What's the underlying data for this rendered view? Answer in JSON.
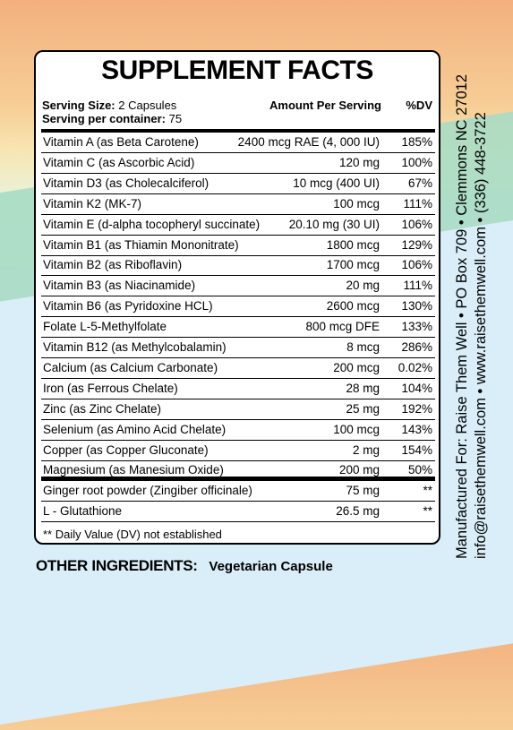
{
  "label": {
    "title": "SUPPLEMENT FACTS",
    "serving_size_label": "Serving Size:",
    "serving_size_value": "2 Capsules",
    "servings_label": "Serving per container:",
    "servings_value": "75",
    "amount_header": "Amount Per Serving",
    "dv_header": "%DV",
    "rows": [
      {
        "name": "Vitamin A (as Beta Carotene)",
        "amount": "2400 mcg RAE (4, 000 IU)",
        "dv": "185%"
      },
      {
        "name": "Vitamin C (as Ascorbic Acid)",
        "amount": "120 mg",
        "dv": "100%"
      },
      {
        "name": "Vitamin D3 (as Cholecalciferol)",
        "amount": "10 mcg (400 UI)",
        "dv": "67%"
      },
      {
        "name": "Vitamin K2 (MK-7)",
        "amount": "100 mcg",
        "dv": "111%"
      },
      {
        "name": "Vitamin E (d-alpha tocopheryl succinate)",
        "amount": "20.10 mg (30 UI)",
        "dv": "106%"
      },
      {
        "name": "Vitamin B1 (as Thiamin Mononitrate)",
        "amount": "1800 mcg",
        "dv": "129%"
      },
      {
        "name": "Vitamin B2 (as Riboflavin)",
        "amount": "1700 mcg",
        "dv": "106%"
      },
      {
        "name": "Vitamin B3 (as Niacinamide)",
        "amount": "20 mg",
        "dv": "111%"
      },
      {
        "name": "Vitamin B6 (as Pyridoxine HCL)",
        "amount": "2600 mcg",
        "dv": "130%"
      },
      {
        "name": "Folate L-5-Methylfolate",
        "amount": "800 mcg DFE",
        "dv": "133%"
      },
      {
        "name": "Vitamin B12 (as Methylcobalamin)",
        "amount": "8 mcg",
        "dv": "286%"
      },
      {
        "name": "Calcium (as Calcium Carbonate)",
        "amount": "200 mcg",
        "dv": "0.02%"
      },
      {
        "name": "Iron (as Ferrous Chelate)",
        "amount": "28 mg",
        "dv": "104%"
      },
      {
        "name": "Zinc (as Zinc Chelate)",
        "amount": "25 mg",
        "dv": "192%"
      },
      {
        "name": "Selenium (as Amino Acid Chelate)",
        "amount": "100 mcg",
        "dv": "143%"
      },
      {
        "name": "Copper (as Copper Gluconate)",
        "amount": "2 mg",
        "dv": "154%"
      },
      {
        "name": "Magnesium (as Manesium Oxide)",
        "amount": "200 mg",
        "dv": "50%"
      }
    ],
    "extra_rows": [
      {
        "name": "Ginger root powder (Zingiber officinale)",
        "amount": "75 mg",
        "dv": "**"
      },
      {
        "name": "L - Glutathione",
        "amount": "26.5 mg",
        "dv": "**"
      }
    ],
    "footnote": "** Daily Value (DV) not  established"
  },
  "other_ingredients": {
    "label": "OTHER INGREDIENTS:",
    "value": "Vegetarian Capsule"
  },
  "manufacturer": {
    "line1": "Manufactured For: Raise Them Well  •  PO Box 709  •  Clemmons NC 27012",
    "line2": "info@raisethemwell.com  •  www.raisethemwell.com  •  (336) 448-3722"
  }
}
